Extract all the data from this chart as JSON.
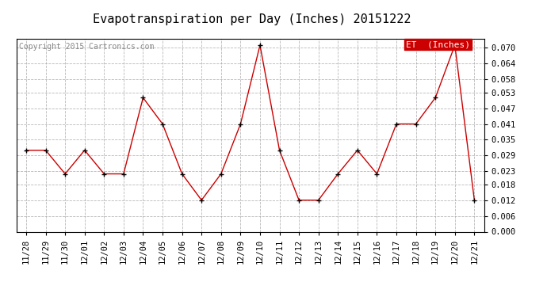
{
  "title": "Evapotranspiration per Day (Inches) 20151222",
  "copyright_text": "Copyright 2015 Cartronics.com",
  "legend_label": "ET  (Inches)",
  "legend_bg": "#cc0000",
  "legend_fg": "#ffffff",
  "dates": [
    "11/28",
    "11/29",
    "11/30",
    "12/01",
    "12/02",
    "12/03",
    "12/04",
    "12/05",
    "12/06",
    "12/07",
    "12/08",
    "12/09",
    "12/10",
    "12/11",
    "12/12",
    "12/13",
    "12/14",
    "12/15",
    "12/16",
    "12/17",
    "12/18",
    "12/19",
    "12/20",
    "12/21"
  ],
  "values": [
    0.031,
    0.031,
    0.022,
    0.031,
    0.022,
    0.022,
    0.051,
    0.041,
    0.022,
    0.012,
    0.022,
    0.041,
    0.071,
    0.031,
    0.012,
    0.012,
    0.022,
    0.031,
    0.022,
    0.041,
    0.041,
    0.051,
    0.071,
    0.012
  ],
  "line_color": "#cc0000",
  "marker_color": "#000000",
  "bg_color": "#ffffff",
  "plot_bg_color": "#ffffff",
  "grid_color": "#999999",
  "ylim": [
    0.0,
    0.0735
  ],
  "yticks": [
    0.0,
    0.006,
    0.012,
    0.018,
    0.023,
    0.029,
    0.035,
    0.041,
    0.047,
    0.053,
    0.058,
    0.064,
    0.07
  ],
  "title_fontsize": 11,
  "tick_fontsize": 7.5,
  "copyright_fontsize": 7
}
